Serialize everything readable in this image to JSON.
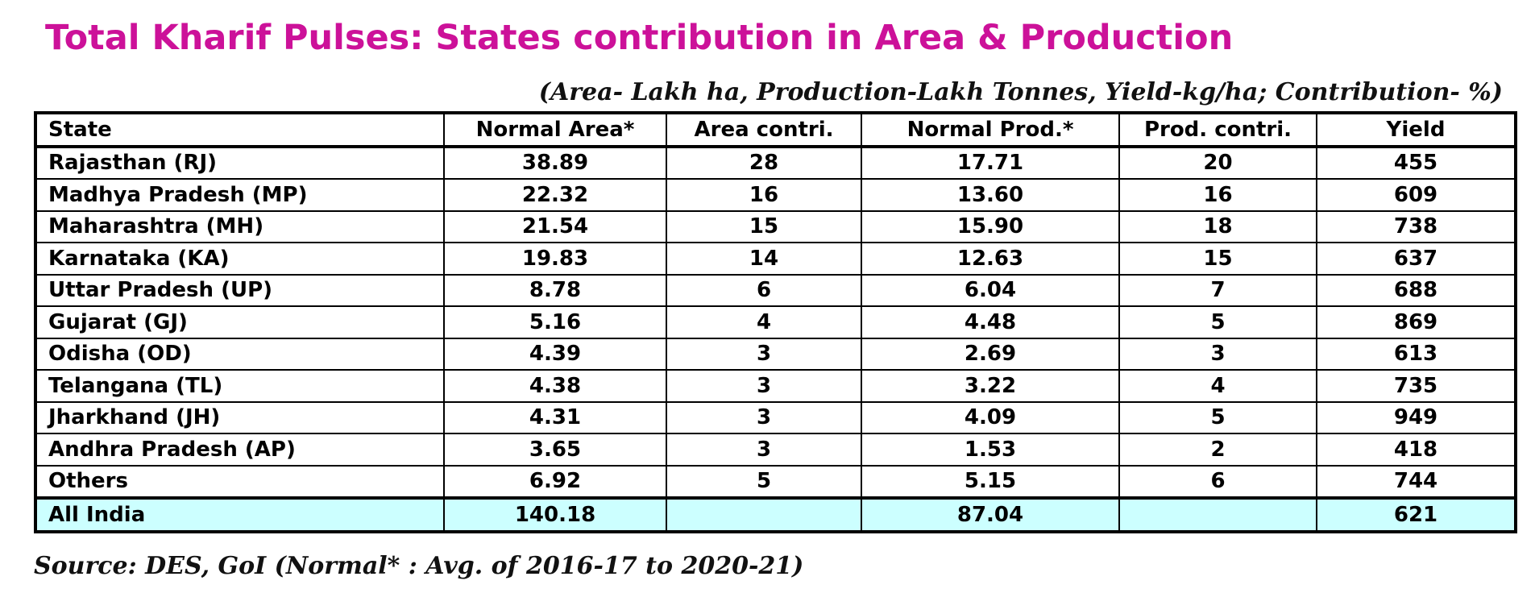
{
  "title": "Total Kharif Pulses: States contribution in Area & Production",
  "units_note": "(Area- Lakh ha, Production-Lakh Tonnes, Yield-kg/ha; Contribution- %)",
  "table": {
    "headers": [
      "State",
      "Normal Area*",
      "Area contri.",
      "Normal Prod.*",
      "Prod. contri.",
      "Yield"
    ],
    "rows": [
      [
        "Rajasthan (RJ)",
        "38.89",
        "28",
        "17.71",
        "20",
        "455"
      ],
      [
        "Madhya Pradesh  (MP)",
        "22.32",
        "16",
        "13.60",
        "16",
        "609"
      ],
      [
        "Maharashtra (MH)",
        "21.54",
        "15",
        "15.90",
        "18",
        "738"
      ],
      [
        "Karnataka (KA)",
        "19.83",
        "14",
        "12.63",
        "15",
        "637"
      ],
      [
        "Uttar Pradesh (UP)",
        "8.78",
        "6",
        "6.04",
        "7",
        "688"
      ],
      [
        "Gujarat (GJ)",
        "5.16",
        "4",
        "4.48",
        "5",
        "869"
      ],
      [
        "Odisha (OD)",
        "4.39",
        "3",
        "2.69",
        "3",
        "613"
      ],
      [
        "Telangana (TL)",
        "4.38",
        "3",
        "3.22",
        "4",
        "735"
      ],
      [
        "Jharkhand (JH)",
        "4.31",
        "3",
        "4.09",
        "5",
        "949"
      ],
      [
        "Andhra Pradesh (AP)",
        "3.65",
        "3",
        "1.53",
        "2",
        "418"
      ],
      [
        "Others",
        "6.92",
        "5",
        "5.15",
        "6",
        "744"
      ]
    ],
    "total": [
      "All India",
      "140.18",
      "",
      "87.04",
      "",
      "621"
    ]
  },
  "source": "Source: DES, GoI (Normal* : Avg. of 2016-17 to 2020-21)",
  "colors": {
    "title": "#cc1199",
    "total_row_bg": "#ccffff",
    "border": "#000000"
  }
}
